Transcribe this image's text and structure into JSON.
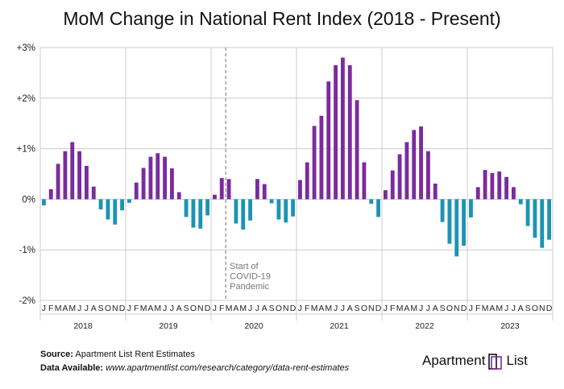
{
  "chart_data": {
    "type": "bar",
    "title": "MoM Change in National Rent Index (2018 - Present)",
    "ylim": [
      -2,
      3
    ],
    "yticks": [
      {
        "value": 3,
        "label": "+3%"
      },
      {
        "value": 2,
        "label": "+2%"
      },
      {
        "value": 1,
        "label": "+1%"
      },
      {
        "value": 0,
        "label": "0%"
      },
      {
        "value": -1,
        "label": "-1%"
      },
      {
        "value": -2,
        "label": "-2%"
      }
    ],
    "years": [
      "2018",
      "2019",
      "2020",
      "2021",
      "2022",
      "2023"
    ],
    "month_labels": [
      "J",
      "F",
      "M",
      "A",
      "M",
      "J",
      "J",
      "A",
      "S",
      "O",
      "N",
      "D"
    ],
    "values": [
      -0.12,
      0.2,
      0.7,
      0.95,
      1.13,
      0.95,
      0.66,
      0.25,
      -0.2,
      -0.4,
      -0.5,
      -0.22,
      -0.07,
      0.33,
      0.62,
      0.84,
      0.91,
      0.84,
      0.61,
      0.14,
      -0.35,
      -0.56,
      -0.58,
      -0.32,
      0.09,
      0.42,
      0.4,
      -0.48,
      -0.6,
      -0.42,
      0.4,
      0.3,
      -0.08,
      -0.4,
      -0.46,
      -0.34,
      0.38,
      0.73,
      1.45,
      1.65,
      2.33,
      2.65,
      2.8,
      2.65,
      1.96,
      0.73,
      -0.09,
      -0.35,
      0.18,
      0.57,
      0.89,
      1.13,
      1.37,
      1.44,
      0.95,
      0.31,
      -0.45,
      -0.88,
      -1.13,
      -0.92,
      -0.36,
      0.24,
      0.58,
      0.52,
      0.55,
      0.44,
      0.24,
      -0.1,
      -0.53,
      -0.76,
      -0.96,
      -0.8
    ],
    "colors": {
      "positive": "#7a2c9e",
      "negative": "#1d93b3",
      "grid": "#cccccc",
      "annotation_line": "#888888"
    },
    "annotation": {
      "month_index": 26,
      "lines": [
        "Start of",
        "COVID-19",
        "Pandemic"
      ]
    }
  },
  "footer": {
    "source_label": "Source:",
    "source_text": " Apartment List Rent Estimates",
    "data_label": "Data Available:",
    "data_url": " www.apartmentlist.com/research/category/data-rent-estimates"
  },
  "logo": {
    "left_text": "Apartment",
    "right_text": "List"
  }
}
